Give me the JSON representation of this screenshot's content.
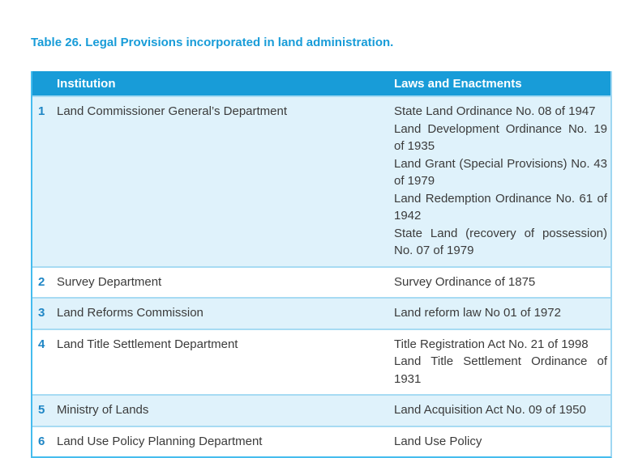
{
  "caption": "Table 26. Legal Provisions incorporated in land administration.",
  "table": {
    "headers": {
      "institution": "Institution",
      "laws": "Laws and Enactments"
    },
    "rows": [
      {
        "num": "1",
        "institution": "Land Commissioner General’s Department",
        "laws": [
          "State Land Ordinance No. 08 of 1947",
          "Land Development Ordinance No. 19 of 1935",
          "Land Grant (Special Provisions) No. 43 of 1979",
          "Land Redemption Ordinance No. 61 of 1942",
          "State Land (recovery of possession) No. 07 of 1979"
        ]
      },
      {
        "num": "2",
        "institution": "Survey Department",
        "laws": [
          "Survey Ordinance of 1875"
        ]
      },
      {
        "num": "3",
        "institution": "Land Reforms Commission",
        "laws": [
          "Land reform law No 01 of 1972"
        ]
      },
      {
        "num": "4",
        "institution": "Land Title Settlement Department",
        "laws": [
          "Title Registration Act No. 21 of 1998",
          "Land Title Settlement Ordinance of 1931"
        ]
      },
      {
        "num": "5",
        "institution": "Ministry of Lands",
        "laws": [
          "Land Acquisition Act No. 09 of 1950"
        ]
      },
      {
        "num": "6",
        "institution": "Land Use Policy Planning Department",
        "laws": [
          "Land Use Policy"
        ]
      }
    ]
  },
  "colors": {
    "accent_blue": "#189CD8",
    "row_number_blue": "#1F86C5",
    "row_alt_background": "#DFF2FB",
    "row_separator": "#A7DBF3",
    "table_border": "#45BCEE",
    "body_text": "#3B3B3B",
    "header_text": "#FFFFFF"
  }
}
